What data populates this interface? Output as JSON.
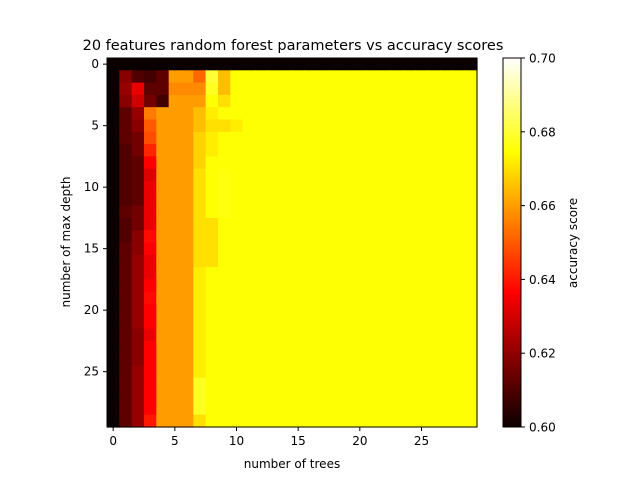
{
  "chart_data": {
    "type": "heatmap",
    "title": "20 features random forest parameters vs accuracy scores",
    "xlabel": "number of trees",
    "ylabel": "number of max depth",
    "x_ticks": [
      0,
      5,
      10,
      15,
      20,
      25
    ],
    "y_ticks": [
      0,
      5,
      10,
      15,
      20,
      25
    ],
    "y_inverted": true,
    "rows": 30,
    "cols": 30,
    "colormap": "hot",
    "colorbar": {
      "label": "accuracy score",
      "min": 0.6,
      "max": 0.7,
      "ticks": [
        "0.60",
        "0.62",
        "0.64",
        "0.66",
        "0.68",
        "0.70"
      ]
    },
    "z": [
      [
        0.6,
        0.6,
        0.6,
        0.6,
        0.6,
        0.6,
        0.6,
        0.6,
        0.6,
        0.6,
        0.6,
        0.6,
        0.6,
        0.6,
        0.6,
        0.6,
        0.6,
        0.6,
        0.6,
        0.6,
        0.6,
        0.6,
        0.6,
        0.6,
        0.6,
        0.6,
        0.6,
        0.6,
        0.6,
        0.6
      ],
      [
        0.6,
        0.618,
        0.61,
        0.608,
        0.612,
        0.66,
        0.66,
        0.652,
        0.68,
        0.665,
        0.675,
        0.675,
        0.675,
        0.675,
        0.675,
        0.675,
        0.675,
        0.675,
        0.675,
        0.675,
        0.675,
        0.675,
        0.675,
        0.675,
        0.675,
        0.675,
        0.675,
        0.675,
        0.675,
        0.675
      ],
      [
        0.6,
        0.62,
        0.632,
        0.612,
        0.612,
        0.657,
        0.657,
        0.657,
        0.678,
        0.665,
        0.675,
        0.675,
        0.675,
        0.675,
        0.675,
        0.675,
        0.675,
        0.675,
        0.675,
        0.675,
        0.675,
        0.675,
        0.675,
        0.675,
        0.675,
        0.675,
        0.675,
        0.675,
        0.675,
        0.675
      ],
      [
        0.6,
        0.618,
        0.628,
        0.615,
        0.608,
        0.66,
        0.66,
        0.66,
        0.675,
        0.67,
        0.675,
        0.675,
        0.675,
        0.675,
        0.675,
        0.675,
        0.675,
        0.675,
        0.675,
        0.675,
        0.675,
        0.675,
        0.675,
        0.675,
        0.675,
        0.675,
        0.675,
        0.675,
        0.675,
        0.675
      ],
      [
        0.6,
        0.612,
        0.62,
        0.655,
        0.66,
        0.66,
        0.66,
        0.665,
        0.672,
        0.675,
        0.675,
        0.675,
        0.675,
        0.675,
        0.675,
        0.675,
        0.675,
        0.675,
        0.675,
        0.675,
        0.675,
        0.675,
        0.675,
        0.675,
        0.675,
        0.675,
        0.675,
        0.675,
        0.675,
        0.675
      ],
      [
        0.6,
        0.612,
        0.618,
        0.65,
        0.66,
        0.66,
        0.66,
        0.665,
        0.67,
        0.67,
        0.672,
        0.675,
        0.675,
        0.675,
        0.675,
        0.675,
        0.675,
        0.675,
        0.675,
        0.675,
        0.675,
        0.675,
        0.675,
        0.675,
        0.675,
        0.675,
        0.675,
        0.675,
        0.675,
        0.675
      ],
      [
        0.6,
        0.612,
        0.615,
        0.648,
        0.66,
        0.66,
        0.66,
        0.668,
        0.672,
        0.675,
        0.675,
        0.675,
        0.675,
        0.675,
        0.675,
        0.675,
        0.675,
        0.675,
        0.675,
        0.675,
        0.675,
        0.675,
        0.675,
        0.675,
        0.675,
        0.675,
        0.675,
        0.675,
        0.675,
        0.675
      ],
      [
        0.6,
        0.61,
        0.615,
        0.642,
        0.66,
        0.66,
        0.66,
        0.668,
        0.672,
        0.675,
        0.675,
        0.675,
        0.675,
        0.675,
        0.675,
        0.675,
        0.675,
        0.675,
        0.675,
        0.675,
        0.675,
        0.675,
        0.675,
        0.675,
        0.675,
        0.675,
        0.675,
        0.675,
        0.675,
        0.675
      ],
      [
        0.6,
        0.61,
        0.612,
        0.636,
        0.66,
        0.66,
        0.66,
        0.668,
        0.675,
        0.675,
        0.675,
        0.675,
        0.675,
        0.675,
        0.675,
        0.675,
        0.675,
        0.675,
        0.675,
        0.675,
        0.675,
        0.675,
        0.675,
        0.675,
        0.675,
        0.675,
        0.675,
        0.675,
        0.675,
        0.675
      ],
      [
        0.6,
        0.61,
        0.612,
        0.63,
        0.66,
        0.66,
        0.66,
        0.67,
        0.675,
        0.676,
        0.675,
        0.675,
        0.675,
        0.675,
        0.675,
        0.675,
        0.675,
        0.675,
        0.675,
        0.675,
        0.675,
        0.675,
        0.675,
        0.675,
        0.675,
        0.675,
        0.675,
        0.675,
        0.675,
        0.675
      ],
      [
        0.6,
        0.61,
        0.612,
        0.632,
        0.66,
        0.66,
        0.66,
        0.67,
        0.675,
        0.676,
        0.675,
        0.675,
        0.675,
        0.675,
        0.675,
        0.675,
        0.675,
        0.675,
        0.675,
        0.675,
        0.675,
        0.675,
        0.675,
        0.675,
        0.675,
        0.675,
        0.675,
        0.675,
        0.675,
        0.675
      ],
      [
        0.6,
        0.61,
        0.612,
        0.632,
        0.66,
        0.66,
        0.66,
        0.67,
        0.675,
        0.676,
        0.675,
        0.675,
        0.675,
        0.675,
        0.675,
        0.675,
        0.675,
        0.675,
        0.675,
        0.675,
        0.675,
        0.675,
        0.675,
        0.675,
        0.675,
        0.675,
        0.675,
        0.675,
        0.675,
        0.675
      ],
      [
        0.6,
        0.612,
        0.615,
        0.632,
        0.66,
        0.66,
        0.66,
        0.67,
        0.675,
        0.676,
        0.675,
        0.675,
        0.675,
        0.675,
        0.675,
        0.675,
        0.675,
        0.675,
        0.675,
        0.675,
        0.675,
        0.675,
        0.675,
        0.675,
        0.675,
        0.675,
        0.675,
        0.675,
        0.675,
        0.675
      ],
      [
        0.6,
        0.61,
        0.615,
        0.632,
        0.66,
        0.66,
        0.66,
        0.67,
        0.67,
        0.675,
        0.675,
        0.675,
        0.675,
        0.675,
        0.675,
        0.675,
        0.675,
        0.675,
        0.675,
        0.675,
        0.675,
        0.675,
        0.675,
        0.675,
        0.675,
        0.675,
        0.675,
        0.675,
        0.675,
        0.675
      ],
      [
        0.6,
        0.61,
        0.618,
        0.638,
        0.66,
        0.66,
        0.66,
        0.67,
        0.67,
        0.675,
        0.675,
        0.675,
        0.675,
        0.675,
        0.675,
        0.675,
        0.675,
        0.675,
        0.675,
        0.675,
        0.675,
        0.675,
        0.675,
        0.675,
        0.675,
        0.675,
        0.675,
        0.675,
        0.675,
        0.675
      ],
      [
        0.6,
        0.612,
        0.618,
        0.635,
        0.66,
        0.66,
        0.66,
        0.67,
        0.67,
        0.675,
        0.675,
        0.675,
        0.675,
        0.675,
        0.675,
        0.675,
        0.675,
        0.675,
        0.675,
        0.675,
        0.675,
        0.675,
        0.675,
        0.675,
        0.675,
        0.675,
        0.675,
        0.675,
        0.675,
        0.675
      ],
      [
        0.6,
        0.612,
        0.62,
        0.632,
        0.66,
        0.66,
        0.66,
        0.67,
        0.67,
        0.675,
        0.675,
        0.675,
        0.675,
        0.675,
        0.675,
        0.675,
        0.675,
        0.675,
        0.675,
        0.675,
        0.675,
        0.675,
        0.675,
        0.675,
        0.675,
        0.675,
        0.675,
        0.675,
        0.675,
        0.675
      ],
      [
        0.6,
        0.612,
        0.62,
        0.632,
        0.66,
        0.66,
        0.66,
        0.672,
        0.675,
        0.675,
        0.675,
        0.675,
        0.675,
        0.675,
        0.675,
        0.675,
        0.675,
        0.675,
        0.675,
        0.675,
        0.675,
        0.675,
        0.675,
        0.675,
        0.675,
        0.675,
        0.675,
        0.675,
        0.675,
        0.675
      ],
      [
        0.6,
        0.612,
        0.62,
        0.635,
        0.66,
        0.66,
        0.66,
        0.672,
        0.675,
        0.675,
        0.675,
        0.675,
        0.675,
        0.675,
        0.675,
        0.675,
        0.675,
        0.675,
        0.675,
        0.675,
        0.675,
        0.675,
        0.675,
        0.675,
        0.675,
        0.675,
        0.675,
        0.675,
        0.675,
        0.675
      ],
      [
        0.6,
        0.612,
        0.62,
        0.638,
        0.66,
        0.66,
        0.66,
        0.672,
        0.675,
        0.675,
        0.675,
        0.675,
        0.675,
        0.675,
        0.675,
        0.675,
        0.675,
        0.675,
        0.675,
        0.675,
        0.675,
        0.675,
        0.675,
        0.675,
        0.675,
        0.675,
        0.675,
        0.675,
        0.675,
        0.675
      ],
      [
        0.6,
        0.612,
        0.62,
        0.636,
        0.66,
        0.66,
        0.66,
        0.672,
        0.675,
        0.675,
        0.675,
        0.675,
        0.675,
        0.675,
        0.675,
        0.675,
        0.675,
        0.675,
        0.675,
        0.675,
        0.675,
        0.675,
        0.675,
        0.675,
        0.675,
        0.675,
        0.675,
        0.675,
        0.675,
        0.675
      ],
      [
        0.6,
        0.612,
        0.62,
        0.636,
        0.66,
        0.66,
        0.66,
        0.672,
        0.675,
        0.675,
        0.675,
        0.675,
        0.675,
        0.675,
        0.675,
        0.675,
        0.675,
        0.675,
        0.675,
        0.675,
        0.675,
        0.675,
        0.675,
        0.675,
        0.675,
        0.675,
        0.675,
        0.675,
        0.675,
        0.675
      ],
      [
        0.6,
        0.612,
        0.618,
        0.632,
        0.66,
        0.66,
        0.66,
        0.672,
        0.675,
        0.675,
        0.675,
        0.675,
        0.675,
        0.675,
        0.675,
        0.675,
        0.675,
        0.675,
        0.675,
        0.675,
        0.675,
        0.675,
        0.675,
        0.675,
        0.675,
        0.675,
        0.675,
        0.675,
        0.675,
        0.675
      ],
      [
        0.6,
        0.612,
        0.618,
        0.636,
        0.66,
        0.66,
        0.66,
        0.672,
        0.675,
        0.675,
        0.675,
        0.675,
        0.675,
        0.675,
        0.675,
        0.675,
        0.675,
        0.675,
        0.675,
        0.675,
        0.675,
        0.675,
        0.675,
        0.675,
        0.675,
        0.675,
        0.675,
        0.675,
        0.675,
        0.675
      ],
      [
        0.6,
        0.612,
        0.618,
        0.636,
        0.66,
        0.66,
        0.66,
        0.672,
        0.675,
        0.675,
        0.675,
        0.675,
        0.675,
        0.675,
        0.675,
        0.675,
        0.675,
        0.675,
        0.675,
        0.675,
        0.675,
        0.675,
        0.675,
        0.675,
        0.675,
        0.675,
        0.675,
        0.675,
        0.675,
        0.675
      ],
      [
        0.6,
        0.612,
        0.62,
        0.636,
        0.66,
        0.66,
        0.66,
        0.672,
        0.675,
        0.675,
        0.675,
        0.675,
        0.675,
        0.675,
        0.675,
        0.675,
        0.675,
        0.675,
        0.675,
        0.675,
        0.675,
        0.675,
        0.675,
        0.675,
        0.675,
        0.675,
        0.675,
        0.675,
        0.675,
        0.675
      ],
      [
        0.6,
        0.612,
        0.62,
        0.636,
        0.66,
        0.66,
        0.66,
        0.678,
        0.675,
        0.675,
        0.675,
        0.675,
        0.675,
        0.675,
        0.675,
        0.675,
        0.675,
        0.675,
        0.675,
        0.675,
        0.675,
        0.675,
        0.675,
        0.675,
        0.675,
        0.675,
        0.675,
        0.675,
        0.675,
        0.675
      ],
      [
        0.6,
        0.612,
        0.62,
        0.636,
        0.66,
        0.66,
        0.66,
        0.678,
        0.675,
        0.675,
        0.675,
        0.675,
        0.675,
        0.675,
        0.675,
        0.675,
        0.675,
        0.675,
        0.675,
        0.675,
        0.675,
        0.675,
        0.675,
        0.675,
        0.675,
        0.675,
        0.675,
        0.675,
        0.675,
        0.675
      ],
      [
        0.6,
        0.612,
        0.62,
        0.636,
        0.66,
        0.66,
        0.66,
        0.678,
        0.675,
        0.675,
        0.675,
        0.675,
        0.675,
        0.675,
        0.675,
        0.675,
        0.675,
        0.675,
        0.675,
        0.675,
        0.675,
        0.675,
        0.675,
        0.675,
        0.675,
        0.675,
        0.675,
        0.675,
        0.675,
        0.675
      ],
      [
        0.6,
        0.612,
        0.62,
        0.64,
        0.66,
        0.66,
        0.66,
        0.67,
        0.675,
        0.675,
        0.675,
        0.675,
        0.675,
        0.675,
        0.675,
        0.675,
        0.675,
        0.675,
        0.675,
        0.675,
        0.675,
        0.675,
        0.675,
        0.675,
        0.675,
        0.675,
        0.675,
        0.675,
        0.675,
        0.675
      ]
    ]
  }
}
